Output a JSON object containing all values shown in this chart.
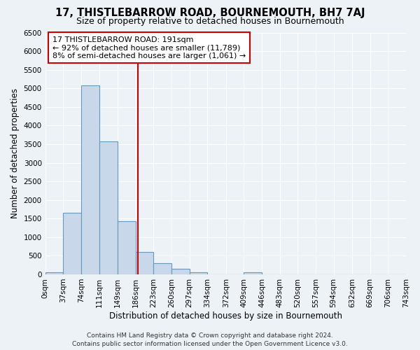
{
  "title": "17, THISTLEBARROW ROAD, BOURNEMOUTH, BH7 7AJ",
  "subtitle": "Size of property relative to detached houses in Bournemouth",
  "xlabel": "Distribution of detached houses by size in Bournemouth",
  "ylabel": "Number of detached properties",
  "bar_color": "#c8d8ea",
  "bar_edge_color": "#6699bb",
  "bin_edges": [
    0,
    37,
    74,
    111,
    149,
    186,
    223,
    260,
    297,
    334,
    372,
    409,
    446,
    483,
    520,
    557,
    594,
    632,
    669,
    706,
    743
  ],
  "bin_labels": [
    "0sqm",
    "37sqm",
    "74sqm",
    "111sqm",
    "149sqm",
    "186sqm",
    "223sqm",
    "260sqm",
    "297sqm",
    "334sqm",
    "372sqm",
    "409sqm",
    "446sqm",
    "483sqm",
    "520sqm",
    "557sqm",
    "594sqm",
    "632sqm",
    "669sqm",
    "706sqm",
    "743sqm"
  ],
  "counts": [
    50,
    1650,
    5080,
    3580,
    1420,
    600,
    300,
    150,
    60,
    0,
    0,
    50,
    0,
    0,
    0,
    0,
    0,
    0,
    0,
    0
  ],
  "vline_x": 191,
  "ylim": [
    0,
    6500
  ],
  "yticks": [
    0,
    500,
    1000,
    1500,
    2000,
    2500,
    3000,
    3500,
    4000,
    4500,
    5000,
    5500,
    6000,
    6500
  ],
  "annotation_title": "17 THISTLEBARROW ROAD: 191sqm",
  "annotation_line1": "← 92% of detached houses are smaller (11,789)",
  "annotation_line2": "8% of semi-detached houses are larger (1,061) →",
  "annotation_box_facecolor": "#ffffff",
  "annotation_box_edgecolor": "#cc0000",
  "vline_color": "#cc0000",
  "footer1": "Contains HM Land Registry data © Crown copyright and database right 2024.",
  "footer2": "Contains public sector information licensed under the Open Government Licence v3.0.",
  "background_color": "#edf2f7",
  "grid_color": "#ffffff",
  "title_fontsize": 10.5,
  "subtitle_fontsize": 9,
  "axis_label_fontsize": 8.5,
  "tick_fontsize": 7.5,
  "annotation_fontsize": 8,
  "footer_fontsize": 6.5
}
